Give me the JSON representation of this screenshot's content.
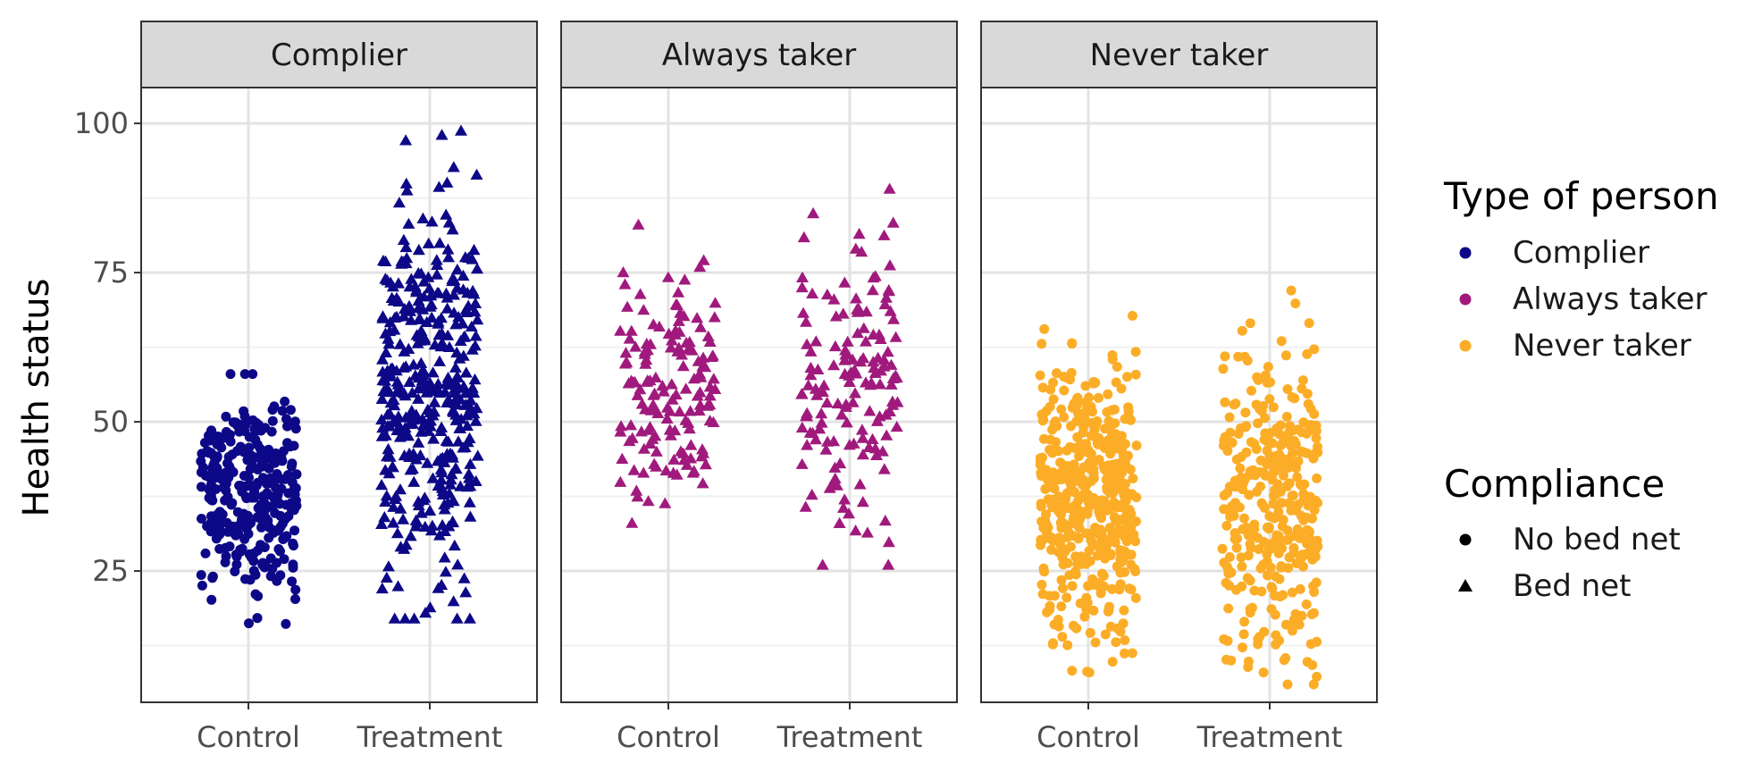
{
  "chart_data": {
    "type": "scatter",
    "facet_by": "Type of person",
    "ylabel": "Health status",
    "xlabel": "",
    "categories": [
      "Control",
      "Treatment"
    ],
    "ylim": [
      3,
      106
    ],
    "yticks": [
      25,
      50,
      75,
      100
    ],
    "facets": [
      "Complier",
      "Always taker",
      "Never taker"
    ],
    "colors": {
      "Complier": "#0d0887",
      "Always taker": "#a01a7d",
      "Never taker": "#fcad27"
    },
    "shapes": {
      "No bed net": "circle",
      "Bed net": "triangle"
    },
    "legend": {
      "position": "right",
      "color_title": "Type of person",
      "color_items": [
        "Complier",
        "Always taker",
        "Never taker"
      ],
      "shape_title": "Compliance",
      "shape_items": [
        "No bed net",
        "Bed net"
      ]
    },
    "groups": [
      {
        "facet": "Complier",
        "x": "Control",
        "compliance": "No bed net",
        "n": 300,
        "center": 38,
        "min": 14,
        "max": 58
      },
      {
        "facet": "Complier",
        "x": "Treatment",
        "compliance": "Bed net",
        "n": 400,
        "center": 55,
        "min": 17,
        "max": 100
      },
      {
        "facet": "Always taker",
        "x": "Control",
        "compliance": "Bed net",
        "n": 150,
        "center": 55,
        "min": 31,
        "max": 83
      },
      {
        "facet": "Always taker",
        "x": "Treatment",
        "compliance": "Bed net",
        "n": 150,
        "center": 55,
        "min": 26,
        "max": 89
      },
      {
        "facet": "Never taker",
        "x": "Control",
        "compliance": "No bed net",
        "n": 450,
        "center": 38,
        "min": 8,
        "max": 71
      },
      {
        "facet": "Never taker",
        "x": "Treatment",
        "compliance": "No bed net",
        "n": 350,
        "center": 36,
        "min": 6,
        "max": 72
      }
    ]
  }
}
